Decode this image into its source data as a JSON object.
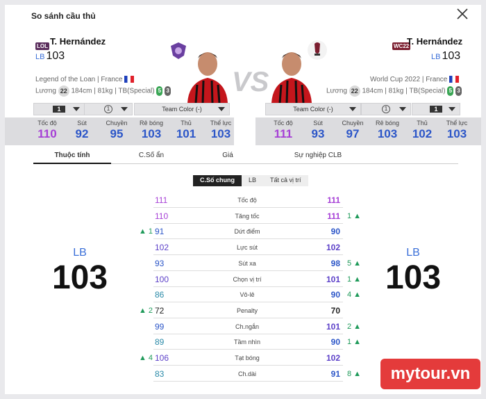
{
  "title": "So sánh cầu thủ",
  "left": {
    "badge": "LOL",
    "name": "T. Hernández",
    "pos": "LB",
    "ovr": "103",
    "season": "Legend of the Loan",
    "nation": "France",
    "wage_label": "Lương",
    "wage": "22",
    "height": "184cm",
    "weight": "81kg",
    "body": "TB(Special)",
    "foot_strong": "5",
    "foot_weak": "3",
    "level": "1",
    "enhance": "1",
    "team_color": "Team Color (-)"
  },
  "right": {
    "badge": "WC22",
    "name": "T. Hernández",
    "pos": "LB",
    "ovr": "103",
    "season": "World Cup 2022",
    "nation": "France",
    "wage_label": "Lương",
    "wage": "22",
    "height": "184cm",
    "weight": "81kg",
    "body": "TB(Special)",
    "foot_strong": "5",
    "foot_weak": "3",
    "level": "1",
    "enhance": "1",
    "team_color": "Team Color (-)"
  },
  "vs": "VS",
  "summary_labels": [
    "Tốc độ",
    "Sút",
    "Chuyền",
    "Rê bóng",
    "Thủ",
    "Thể lực"
  ],
  "summary_left": [
    "110",
    "92",
    "95",
    "103",
    "101",
    "103"
  ],
  "summary_right": [
    "111",
    "93",
    "97",
    "103",
    "102",
    "103"
  ],
  "summary_colors": [
    "#a63fd6",
    "#2c56c8",
    "#2c56c8",
    "#2c56c8",
    "#2c56c8",
    "#2c56c8"
  ],
  "tabs": [
    "Thuộc tính",
    "C.Số ẩn",
    "Giá",
    "Sự nghiệp CLB"
  ],
  "subtabs": [
    "C.Số chung",
    "LB",
    "Tất cả vị trí"
  ],
  "big": {
    "left_pos": "LB",
    "left_num": "103",
    "right_pos": "LB",
    "right_num": "103"
  },
  "stats": [
    {
      "name": "Tốc độ",
      "l": "111",
      "r": "111",
      "dl": "",
      "dr": "",
      "cl": "#a63fd6",
      "cr": "#a63fd6"
    },
    {
      "name": "Tăng tốc",
      "l": "110",
      "r": "111",
      "dl": "",
      "dr": "1 ▲",
      "cl": "#a63fd6",
      "cr": "#a63fd6"
    },
    {
      "name": "Dứt điểm",
      "l": "91",
      "r": "90",
      "dl": "▲ 1",
      "dr": "",
      "cl": "#2c56c8",
      "cr": "#2c56c8"
    },
    {
      "name": "Lực sút",
      "l": "102",
      "r": "102",
      "dl": "",
      "dr": "",
      "cl": "#5b3fc8",
      "cr": "#5b3fc8"
    },
    {
      "name": "Sút xa",
      "l": "93",
      "r": "98",
      "dl": "",
      "dr": "5 ▲",
      "cl": "#2c56c8",
      "cr": "#2c56c8"
    },
    {
      "name": "Chọn vị trí",
      "l": "100",
      "r": "101",
      "dl": "",
      "dr": "1 ▲",
      "cl": "#5b3fc8",
      "cr": "#5b3fc8"
    },
    {
      "name": "Vô-lê",
      "l": "86",
      "r": "90",
      "dl": "",
      "dr": "4 ▲",
      "cl": "#2a8aa8",
      "cr": "#2c56c8"
    },
    {
      "name": "Penalty",
      "l": "72",
      "r": "70",
      "dl": "▲ 2",
      "dr": "",
      "cl": "#222",
      "cr": "#222"
    },
    {
      "name": "Ch.ngắn",
      "l": "99",
      "r": "101",
      "dl": "",
      "dr": "2 ▲",
      "cl": "#2c56c8",
      "cr": "#5b3fc8"
    },
    {
      "name": "Tầm nhìn",
      "l": "89",
      "r": "90",
      "dl": "",
      "dr": "1 ▲",
      "cl": "#2a8aa8",
      "cr": "#2c56c8"
    },
    {
      "name": "Tạt bóng",
      "l": "106",
      "r": "102",
      "dl": "▲ 4",
      "dr": "",
      "cl": "#5b3fc8",
      "cr": "#5b3fc8"
    },
    {
      "name": "Ch.dài",
      "l": "83",
      "r": "91",
      "dl": "",
      "dr": "8 ▲",
      "cl": "#2a8aa8",
      "cr": "#2c56c8"
    }
  ],
  "watermark": "mytour.vn"
}
